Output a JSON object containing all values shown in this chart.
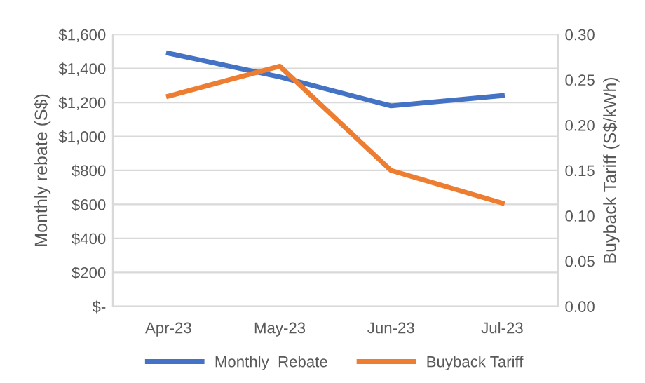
{
  "chart_data": {
    "type": "line",
    "categories": [
      "Apr-23",
      "May-23",
      "Jun-23",
      "Jul-23"
    ],
    "series": [
      {
        "name": "Monthly  Rebate",
        "color": "#4472c4",
        "values": [
          1490,
          1350,
          1180,
          1240
        ]
      },
      {
        "name": "Buyback Tariff",
        "color": "#ed7d31",
        "values": [
          0.232,
          0.265,
          0.15,
          0.114
        ],
        "axis": "y2"
      }
    ],
    "ylabel": "Monthly rebate (S$)",
    "y2label": "Buyback Tariff (S$/kWh)",
    "ylim": [
      0,
      1600
    ],
    "yticks": [
      {
        "value": 0,
        "label": "$-"
      },
      {
        "value": 200,
        "label": "$200"
      },
      {
        "value": 400,
        "label": "$400"
      },
      {
        "value": 600,
        "label": "$600"
      },
      {
        "value": 800,
        "label": "$800"
      },
      {
        "value": 1000,
        "label": "$1,000"
      },
      {
        "value": 1200,
        "label": "$1,200"
      },
      {
        "value": 1400,
        "label": "$1,400"
      },
      {
        "value": 1600,
        "label": "$1,600"
      }
    ],
    "y2lim": [
      0,
      0.3
    ],
    "y2ticks": [
      {
        "value": 0,
        "label": "0.00"
      },
      {
        "value": 0.05,
        "label": "0.05"
      },
      {
        "value": 0.1,
        "label": "0.10"
      },
      {
        "value": 0.15,
        "label": "0.15"
      },
      {
        "value": 0.2,
        "label": "0.20"
      },
      {
        "value": 0.25,
        "label": "0.25"
      },
      {
        "value": 0.3,
        "label": "0.30"
      }
    ],
    "grid": "y",
    "legend": "bottom",
    "marker": "none",
    "line_style": "solid"
  }
}
